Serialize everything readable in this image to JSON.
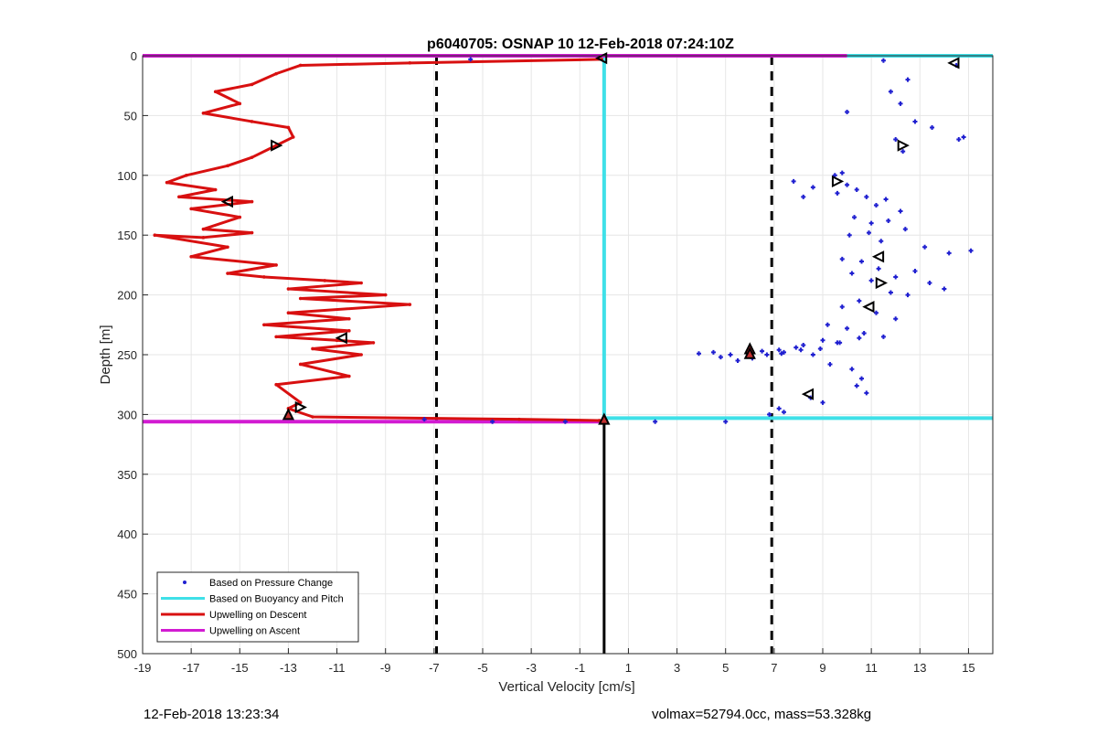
{
  "chart_data": {
    "type": "scatter",
    "title": "p6040705: OSNAP 10 12-Feb-2018 07:24:10Z",
    "xlabel": "Vertical Velocity [cm/s]",
    "ylabel": "Depth [m]",
    "xlim": [
      -19,
      16
    ],
    "ylim": [
      500,
      0
    ],
    "xticks": [
      -19,
      -17,
      -15,
      -13,
      -11,
      -9,
      -7,
      -5,
      -3,
      -1,
      1,
      3,
      5,
      7,
      9,
      11,
      13,
      15
    ],
    "yticks": [
      0,
      50,
      100,
      150,
      200,
      250,
      300,
      350,
      400,
      450,
      500
    ],
    "grid": true,
    "legend_position": "bottom-left",
    "legend": [
      {
        "label": "Based on Pressure Change",
        "color": "#1f1fd0",
        "style": "dots"
      },
      {
        "label": "Based on Buoyancy and Pitch",
        "color": "#3fe0e8",
        "style": "line"
      },
      {
        "label": "Upwelling on Descent",
        "color": "#d81010",
        "style": "line"
      },
      {
        "label": "Upwelling on Ascent",
        "color": "#d21bd2",
        "style": "line"
      }
    ],
    "reference_lines": {
      "dashed_vertical_x": [
        -6.9,
        6.9
      ],
      "solid_vertical": {
        "x": 0,
        "from_depth": 305,
        "to_depth": 500
      }
    },
    "series": [
      {
        "name": "Upwelling on Descent",
        "color": "#d81010",
        "x": [
          -0.1,
          -8,
          -12.5,
          -13.5,
          -14.5,
          -16,
          -15,
          -16.5,
          -14.5,
          -13,
          -12.8,
          -13.5,
          -14.5,
          -15.5,
          -17.2,
          -18,
          -16,
          -17.5,
          -14.5,
          -17,
          -15,
          -16.5,
          -14.5,
          -16.5,
          -18.5,
          -15.5,
          -17,
          -13.5,
          -15.5,
          -14,
          -11.5,
          -10,
          -13,
          -9,
          -12.5,
          -8,
          -13,
          -10.5,
          -14,
          -10.5,
          -13.5,
          -11,
          -9.5,
          -12,
          -10,
          -12.5,
          -10.5,
          -13.5,
          -12.5,
          -13,
          -12,
          -3.5,
          -0.2
        ],
        "y": [
          3,
          6,
          8,
          15,
          24,
          30,
          40,
          48,
          55,
          60,
          68,
          75,
          85,
          92,
          100,
          106,
          112,
          118,
          122,
          128,
          135,
          145,
          148,
          152,
          150,
          160,
          168,
          175,
          182,
          185,
          188,
          190,
          195,
          200,
          203,
          208,
          215,
          220,
          225,
          230,
          235,
          238,
          240,
          245,
          250,
          258,
          268,
          275,
          290,
          295,
          302,
          304,
          305
        ]
      },
      {
        "name": "Upwelling on Ascent",
        "color": "#d21bd2",
        "x": [
          -19,
          10
        ],
        "y": [
          0,
          0
        ],
        "x2": [
          -19,
          0
        ],
        "y2": [
          306,
          306
        ]
      },
      {
        "name": "Based on Buoyancy and Pitch",
        "color": "#3fe0e8",
        "x": [
          0,
          0
        ],
        "y": [
          0,
          305
        ],
        "surface_x": [
          10,
          16
        ],
        "surface_y": [
          0,
          0
        ],
        "bottom_x": [
          0,
          16
        ],
        "bottom_y": [
          303,
          303
        ]
      },
      {
        "name": "Based on Pressure Change",
        "color": "#1f1fd0",
        "x": [
          -5.5,
          11.5,
          14.5,
          12.5,
          11.8,
          12.2,
          10,
          12.8,
          13.5,
          12,
          9.8,
          14.6,
          14.8,
          12.3,
          9.5,
          8.2,
          7.8,
          8.6,
          10.4,
          10,
          10.8,
          11.2,
          11.6,
          12.2,
          9.6,
          10.3,
          11.0,
          11.7,
          12.4,
          10.1,
          10.9,
          11.4,
          13.2,
          14.2,
          15.1,
          9.8,
          10.6,
          11.3,
          12.0,
          12.8,
          13.4,
          14.0,
          10.2,
          11.0,
          11.8,
          12.5,
          9.8,
          10.5,
          11.2,
          12.0,
          9.2,
          10.0,
          10.7,
          11.5,
          9.0,
          9.7,
          10.5,
          8.2,
          8.9,
          9.6,
          7.2,
          7.9,
          8.6,
          6.5,
          7.3,
          5.2,
          4.5,
          3.9,
          4.8,
          5.5,
          6.1,
          6.7,
          7.4,
          8.1,
          9.3,
          10.2,
          10.6,
          10.4,
          10.8,
          8.5,
          9.0,
          7.2,
          6.8,
          7.4,
          -7.4,
          -4.6,
          -1.6,
          2.1,
          5.0
        ],
        "y": [
          3,
          4,
          8,
          20,
          30,
          40,
          47,
          55,
          60,
          70,
          98,
          70,
          68,
          80,
          100,
          118,
          105,
          110,
          112,
          108,
          118,
          125,
          120,
          130,
          115,
          135,
          140,
          138,
          145,
          150,
          148,
          155,
          160,
          165,
          163,
          170,
          172,
          178,
          185,
          180,
          190,
          195,
          182,
          188,
          198,
          200,
          210,
          205,
          215,
          220,
          225,
          228,
          232,
          235,
          238,
          240,
          236,
          242,
          245,
          240,
          246,
          244,
          250,
          247,
          249,
          250,
          248,
          249,
          252,
          255,
          253,
          250,
          248,
          246,
          258,
          262,
          270,
          276,
          282,
          286,
          290,
          295,
          300,
          298,
          304,
          306,
          306,
          306,
          306
        ]
      }
    ],
    "markers": {
      "right_triangles": [
        [
          -13.5,
          75
        ],
        [
          -12.5,
          294
        ],
        [
          9.6,
          105
        ],
        [
          11.4,
          190
        ],
        [
          12.3,
          75
        ]
      ],
      "left_triangles": [
        [
          14.4,
          6
        ],
        [
          -15.5,
          122
        ],
        [
          -10.8,
          236
        ],
        [
          -0.1,
          2
        ],
        [
          11.3,
          168
        ],
        [
          10.9,
          210
        ],
        [
          8.4,
          283
        ]
      ],
      "up_triangles": [
        [
          -13,
          300
        ],
        [
          0,
          304
        ],
        [
          6,
          245
        ],
        [
          6,
          249
        ]
      ]
    }
  },
  "footer": {
    "left": "12-Feb-2018 13:23:34",
    "right": "volmax=52794.0cc, mass=53.328kg"
  }
}
